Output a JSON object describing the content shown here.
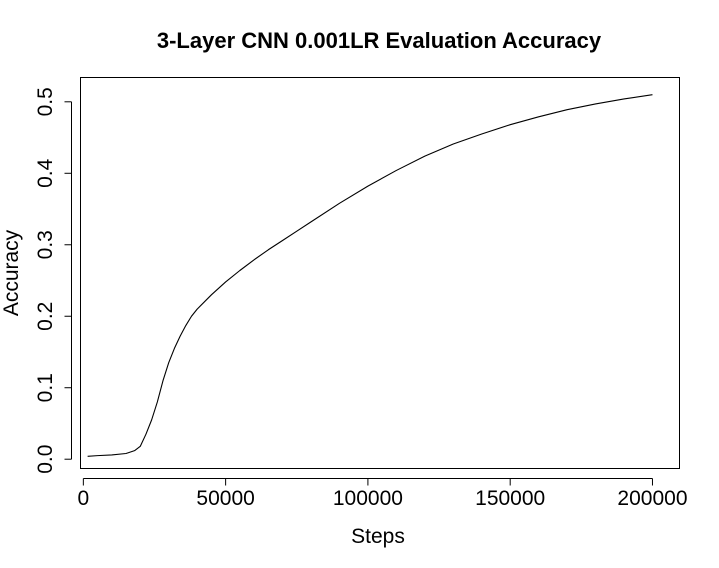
{
  "chart_data": {
    "type": "line",
    "title": "3-Layer CNN 0.001LR Evaluation Accuracy",
    "xlabel": "Steps",
    "ylabel": "Accuracy",
    "xlim": [
      -1000,
      209500
    ],
    "ylim": [
      -0.013,
      0.534
    ],
    "x_ticks": [
      0,
      50000,
      100000,
      150000,
      200000
    ],
    "x_tick_labels": [
      "0",
      "50000",
      "100000",
      "150000",
      "200000"
    ],
    "y_ticks": [
      0.0,
      0.1,
      0.2,
      0.3,
      0.4,
      0.5
    ],
    "y_tick_labels": [
      "0.0",
      "0.1",
      "0.2",
      "0.3",
      "0.4",
      "0.5"
    ],
    "grid": false,
    "legend": "none",
    "line_color": "#000000",
    "series": [
      {
        "x": [
          1500,
          5000,
          10000,
          15000,
          18000,
          20000,
          22000,
          24000,
          26000,
          28000,
          30000,
          32000,
          34000,
          36000,
          38000,
          40000,
          45000,
          50000,
          55000,
          60000,
          65000,
          70000,
          75000,
          80000,
          90000,
          100000,
          110000,
          120000,
          130000,
          140000,
          150000,
          160000,
          170000,
          180000,
          190000,
          200000
        ],
        "y": [
          0.004,
          0.005,
          0.006,
          0.008,
          0.012,
          0.018,
          0.035,
          0.055,
          0.08,
          0.11,
          0.135,
          0.155,
          0.172,
          0.187,
          0.2,
          0.21,
          0.23,
          0.248,
          0.264,
          0.279,
          0.293,
          0.306,
          0.319,
          0.332,
          0.358,
          0.382,
          0.404,
          0.424,
          0.441,
          0.455,
          0.468,
          0.479,
          0.489,
          0.497,
          0.504,
          0.51
        ]
      }
    ]
  }
}
